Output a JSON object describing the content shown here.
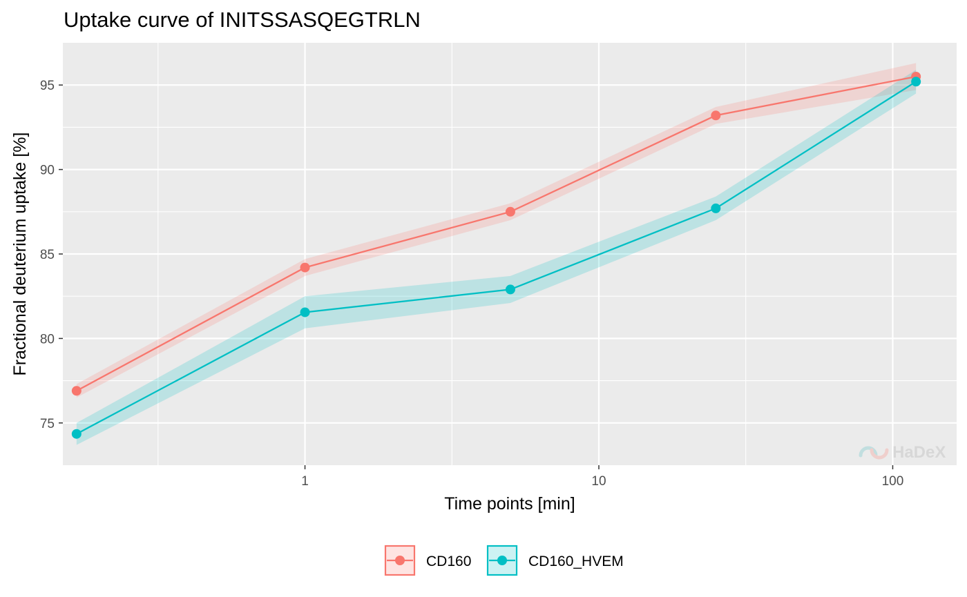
{
  "chart_data": {
    "type": "line",
    "title": "Uptake curve of INITSSASQEGTRLN",
    "xlabel": "Time points [min]",
    "ylabel": "Fractional deuterium uptake [%]",
    "x_scale": "log10",
    "xlim": [
      0.15,
      165
    ],
    "ylim": [
      72.5,
      97.5
    ],
    "x_ticks": [
      1,
      10,
      100
    ],
    "x_tick_labels": [
      "1",
      "10",
      "100"
    ],
    "y_ticks": [
      75,
      80,
      85,
      90,
      95
    ],
    "y_tick_labels": [
      "75",
      "80",
      "85",
      "90",
      "95"
    ],
    "grid": true,
    "legend_position": "bottom",
    "x": [
      0.167,
      1,
      5,
      25,
      120
    ],
    "series": [
      {
        "name": "CD160",
        "color": "#F8766D",
        "values": [
          76.9,
          84.2,
          87.5,
          93.2,
          95.5
        ],
        "lower": [
          76.5,
          83.7,
          87.0,
          92.7,
          94.7
        ],
        "upper": [
          77.3,
          84.7,
          88.0,
          93.7,
          96.3
        ]
      },
      {
        "name": "CD160_HVEM",
        "color": "#00BFC4",
        "values": [
          74.35,
          81.55,
          82.9,
          87.7,
          95.2
        ],
        "lower": [
          73.7,
          80.6,
          82.1,
          87.0,
          94.5
        ],
        "upper": [
          75.0,
          82.5,
          83.7,
          88.4,
          95.9
        ]
      }
    ]
  },
  "watermark": {
    "text": "HaDeX"
  }
}
